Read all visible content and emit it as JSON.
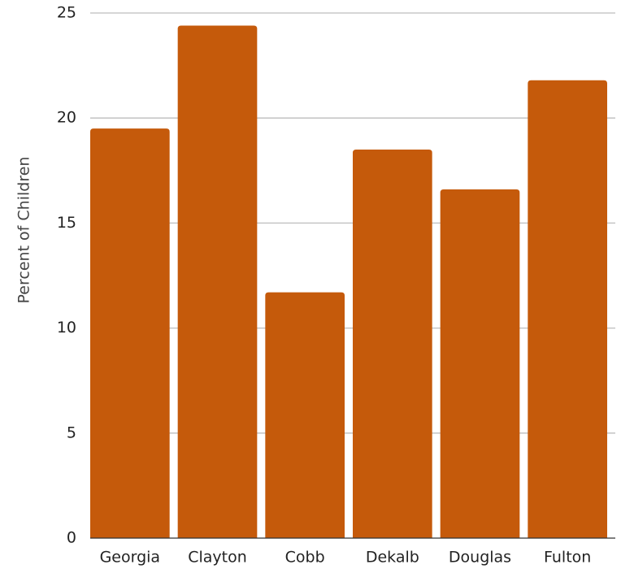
{
  "chart_data": {
    "type": "bar",
    "categories": [
      "Georgia",
      "Clayton",
      "Cobb",
      "Dekalb",
      "Douglas",
      "Fulton"
    ],
    "values": [
      19.5,
      24.4,
      11.7,
      18.5,
      16.6,
      21.8
    ],
    "title": "",
    "xlabel": "",
    "ylabel": "Percent of Children",
    "ylim": [
      0,
      25
    ],
    "yticks": [
      0,
      5,
      10,
      15,
      20,
      25
    ],
    "grid": true,
    "legend": "none",
    "colors": {
      "bar": "#c55a0b"
    }
  }
}
